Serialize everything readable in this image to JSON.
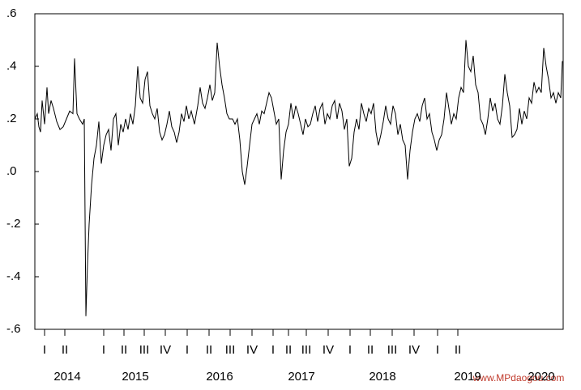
{
  "chart_data": {
    "type": "line",
    "color": "#000000",
    "xlim": [
      2014.17,
      2020.69
    ],
    "ylim": [
      -0.6,
      0.6
    ],
    "yticks": [
      {
        "value": 0.6,
        "label": ".6"
      },
      {
        "value": 0.4,
        "label": ".4"
      },
      {
        "value": 0.2,
        "label": ".2"
      },
      {
        "value": 0,
        "label": ".0"
      },
      {
        "value": -0.2,
        "label": "-.2"
      },
      {
        "value": -0.4,
        "label": "-.4"
      },
      {
        "value": -0.6,
        "label": "-.6"
      }
    ],
    "xticks": [
      {
        "value": 2014.29,
        "label": "I"
      },
      {
        "value": 2014.54,
        "label": "II"
      },
      {
        "value": 2015.02,
        "label": "I"
      },
      {
        "value": 2015.27,
        "label": "II"
      },
      {
        "value": 2015.52,
        "label": "III"
      },
      {
        "value": 2015.78,
        "label": "IV"
      },
      {
        "value": 2016.05,
        "label": "I"
      },
      {
        "value": 2016.32,
        "label": "II"
      },
      {
        "value": 2016.58,
        "label": "III"
      },
      {
        "value": 2016.85,
        "label": "IV"
      },
      {
        "value": 2017.11,
        "label": "I"
      },
      {
        "value": 2017.3,
        "label": "II"
      },
      {
        "value": 2017.52,
        "label": "III"
      },
      {
        "value": 2017.79,
        "label": "IV"
      },
      {
        "value": 2018.06,
        "label": "I"
      },
      {
        "value": 2018.31,
        "label": "II"
      },
      {
        "value": 2018.58,
        "label": "III"
      },
      {
        "value": 2018.85,
        "label": "IV"
      },
      {
        "value": 2019.14,
        "label": "I"
      },
      {
        "value": 2019.39,
        "label": "II"
      }
    ],
    "year_labels": [
      {
        "value": 2014.57,
        "label": "2014"
      },
      {
        "value": 2015.41,
        "label": "2015"
      },
      {
        "value": 2016.45,
        "label": "2016"
      },
      {
        "value": 2017.46,
        "label": "2017"
      },
      {
        "value": 2018.46,
        "label": "2018"
      },
      {
        "value": 2019.51,
        "label": "2019"
      },
      {
        "value": 2020.42,
        "label": "2020"
      }
    ],
    "x": [
      2014.17,
      2014.2,
      2014.22,
      2014.24,
      2014.26,
      2014.29,
      2014.32,
      2014.34,
      2014.37,
      2014.4,
      2014.44,
      2014.48,
      2014.52,
      2014.56,
      2014.6,
      2014.64,
      2014.66,
      2014.69,
      2014.72,
      2014.76,
      2014.78,
      2014.8,
      2014.82,
      2014.84,
      2014.87,
      2014.9,
      2014.93,
      2014.96,
      2014.99,
      2015.02,
      2015.05,
      2015.08,
      2015.11,
      2015.14,
      2015.17,
      2015.2,
      2015.23,
      2015.26,
      2015.29,
      2015.32,
      2015.35,
      2015.38,
      2015.41,
      2015.44,
      2015.47,
      2015.5,
      2015.53,
      2015.56,
      2015.59,
      2015.62,
      2015.65,
      2015.68,
      2015.71,
      2015.74,
      2015.77,
      2015.8,
      2015.83,
      2015.86,
      2015.89,
      2015.92,
      2015.95,
      2015.98,
      2016.01,
      2016.04,
      2016.07,
      2016.1,
      2016.14,
      2016.18,
      2016.21,
      2016.24,
      2016.27,
      2016.3,
      2016.33,
      2016.36,
      2016.39,
      2016.42,
      2016.45,
      2016.48,
      2016.51,
      2016.54,
      2016.57,
      2016.61,
      2016.64,
      2016.67,
      2016.7,
      2016.73,
      2016.76,
      2016.79,
      2016.82,
      2016.85,
      2016.88,
      2016.91,
      2016.94,
      2016.97,
      2017.0,
      2017.03,
      2017.06,
      2017.09,
      2017.12,
      2017.15,
      2017.18,
      2017.21,
      2017.24,
      2017.27,
      2017.3,
      2017.33,
      2017.36,
      2017.39,
      2017.42,
      2017.45,
      2017.48,
      2017.51,
      2017.54,
      2017.57,
      2017.6,
      2017.63,
      2017.66,
      2017.69,
      2017.72,
      2017.75,
      2017.78,
      2017.81,
      2017.84,
      2017.87,
      2017.9,
      2017.93,
      2017.96,
      2017.99,
      2018.02,
      2018.05,
      2018.08,
      2018.11,
      2018.14,
      2018.17,
      2018.2,
      2018.23,
      2018.26,
      2018.29,
      2018.32,
      2018.35,
      2018.38,
      2018.41,
      2018.44,
      2018.47,
      2018.5,
      2018.53,
      2018.56,
      2018.59,
      2018.62,
      2018.65,
      2018.68,
      2018.71,
      2018.74,
      2018.77,
      2018.8,
      2018.83,
      2018.86,
      2018.89,
      2018.92,
      2018.95,
      2018.98,
      2019.01,
      2019.04,
      2019.07,
      2019.1,
      2019.13,
      2019.16,
      2019.19,
      2019.22,
      2019.25,
      2019.28,
      2019.31,
      2019.34,
      2019.37,
      2019.4,
      2019.43,
      2019.46,
      2019.49,
      2019.52,
      2019.55,
      2019.58,
      2019.61,
      2019.64,
      2019.67,
      2019.7,
      2019.73,
      2019.76,
      2019.79,
      2019.82,
      2019.85,
      2019.88,
      2019.91,
      2019.94,
      2019.97,
      2020.0,
      2020.03,
      2020.06,
      2020.09,
      2020.12,
      2020.15,
      2020.18,
      2020.21,
      2020.24,
      2020.27,
      2020.3,
      2020.33,
      2020.36,
      2020.39,
      2020.42,
      2020.45,
      2020.48,
      2020.51,
      2020.54,
      2020.57,
      2020.6,
      2020.63,
      2020.66,
      2020.68
    ],
    "values": [
      0.2,
      0.22,
      0.17,
      0.15,
      0.27,
      0.18,
      0.32,
      0.22,
      0.27,
      0.24,
      0.19,
      0.16,
      0.17,
      0.2,
      0.23,
      0.22,
      0.43,
      0.22,
      0.2,
      0.18,
      0.2,
      -0.55,
      -0.35,
      -0.2,
      -0.05,
      0.05,
      0.1,
      0.19,
      0.03,
      0.1,
      0.14,
      0.16,
      0.08,
      0.2,
      0.22,
      0.1,
      0.18,
      0.15,
      0.2,
      0.16,
      0.22,
      0.18,
      0.25,
      0.4,
      0.28,
      0.26,
      0.35,
      0.38,
      0.25,
      0.22,
      0.2,
      0.24,
      0.15,
      0.12,
      0.14,
      0.18,
      0.23,
      0.17,
      0.15,
      0.11,
      0.15,
      0.22,
      0.19,
      0.25,
      0.2,
      0.23,
      0.18,
      0.25,
      0.32,
      0.26,
      0.24,
      0.28,
      0.33,
      0.27,
      0.3,
      0.49,
      0.4,
      0.33,
      0.28,
      0.22,
      0.2,
      0.2,
      0.18,
      0.2,
      0.12,
      0.0,
      -0.05,
      0.02,
      0.1,
      0.18,
      0.2,
      0.22,
      0.18,
      0.23,
      0.22,
      0.26,
      0.3,
      0.28,
      0.23,
      0.18,
      0.2,
      -0.03,
      0.08,
      0.15,
      0.18,
      0.26,
      0.2,
      0.25,
      0.22,
      0.18,
      0.14,
      0.2,
      0.17,
      0.18,
      0.22,
      0.25,
      0.19,
      0.24,
      0.26,
      0.18,
      0.22,
      0.2,
      0.25,
      0.27,
      0.2,
      0.26,
      0.23,
      0.16,
      0.2,
      0.02,
      0.05,
      0.15,
      0.2,
      0.16,
      0.26,
      0.22,
      0.19,
      0.24,
      0.22,
      0.26,
      0.15,
      0.1,
      0.14,
      0.19,
      0.25,
      0.2,
      0.18,
      0.25,
      0.22,
      0.14,
      0.18,
      0.12,
      0.1,
      -0.03,
      0.08,
      0.15,
      0.2,
      0.22,
      0.19,
      0.25,
      0.28,
      0.2,
      0.22,
      0.15,
      0.12,
      0.08,
      0.12,
      0.14,
      0.2,
      0.3,
      0.24,
      0.18,
      0.22,
      0.2,
      0.28,
      0.32,
      0.3,
      0.5,
      0.4,
      0.38,
      0.44,
      0.33,
      0.3,
      0.2,
      0.18,
      0.14,
      0.2,
      0.28,
      0.23,
      0.26,
      0.2,
      0.18,
      0.25,
      0.37,
      0.3,
      0.25,
      0.13,
      0.14,
      0.16,
      0.24,
      0.18,
      0.23,
      0.2,
      0.28,
      0.26,
      0.34,
      0.3,
      0.32,
      0.3,
      0.47,
      0.4,
      0.35,
      0.28,
      0.3,
      0.26,
      0.3,
      0.28,
      0.42
    ]
  },
  "watermark": "www.MPdaogou.com"
}
